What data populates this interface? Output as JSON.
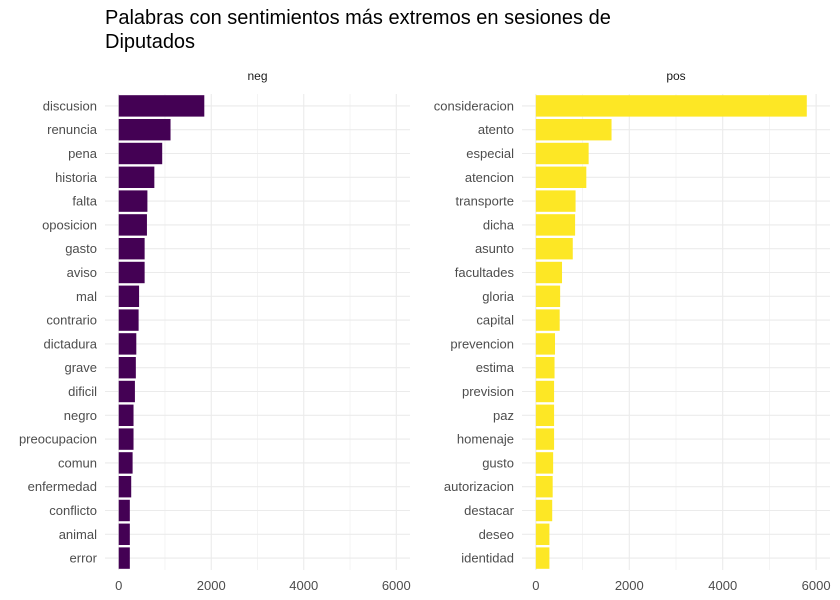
{
  "chart_data": {
    "type": "bar",
    "orientation": "horizontal",
    "title": "Palabras con sentimientos más extremos en sesiones de Diputados",
    "xlabel": "",
    "ylabel": "",
    "xlim": [
      0,
      6000
    ],
    "xticks": [
      0,
      2000,
      4000,
      6000
    ],
    "grid": true,
    "legend": "none",
    "panels": [
      {
        "name": "neg",
        "color": "#440154",
        "categories": [
          "discusion",
          "renuncia",
          "pena",
          "historia",
          "falta",
          "oposicion",
          "gasto",
          "aviso",
          "mal",
          "contrario",
          "dictadura",
          "grave",
          "dificil",
          "negro",
          "preocupacion",
          "comun",
          "enfermedad",
          "conflicto",
          "animal",
          "error"
        ],
        "values": [
          1850,
          1120,
          940,
          770,
          620,
          610,
          560,
          560,
          440,
          430,
          380,
          370,
          350,
          320,
          320,
          300,
          270,
          240,
          240,
          240
        ]
      },
      {
        "name": "pos",
        "color": "#FDE725",
        "categories": [
          "consideracion",
          "atento",
          "especial",
          "atencion",
          "transporte",
          "dicha",
          "asunto",
          "facultades",
          "gloria",
          "capital",
          "prevencion",
          "estima",
          "prevision",
          "paz",
          "homenaje",
          "gusto",
          "autorizacion",
          "destacar",
          "deseo",
          "identidad"
        ],
        "values": [
          5800,
          1620,
          1130,
          1080,
          850,
          840,
          790,
          560,
          520,
          510,
          410,
          400,
          390,
          390,
          390,
          370,
          360,
          350,
          290,
          290
        ]
      }
    ]
  }
}
